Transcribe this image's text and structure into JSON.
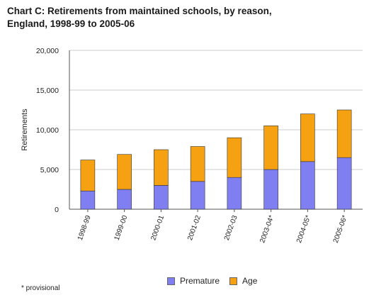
{
  "chart_data": {
    "type": "bar",
    "stacked": true,
    "title": "Chart C: Retirements from maintained schools, by reason,",
    "subtitle": "England, 1998-99 to 2005-06",
    "xlabel": "",
    "ylabel": "Retirements",
    "categories": [
      "1998-99",
      "1999-00",
      "2000-01",
      "2001-02",
      "2002-03",
      "2003-04*",
      "2004-05*",
      "2005-06*"
    ],
    "series": [
      {
        "name": "Premature",
        "color": "#7f7ff2",
        "values": [
          2300,
          2500,
          3000,
          3500,
          4000,
          5000,
          6000,
          6500
        ]
      },
      {
        "name": "Age",
        "color": "#f5a111",
        "values": [
          3900,
          4400,
          4500,
          4400,
          5000,
          5500,
          6000,
          6000
        ]
      }
    ],
    "ylim": [
      0,
      20000
    ],
    "yticks": [
      "0",
      "5,000",
      "10,000",
      "15,000",
      "20,000"
    ],
    "ytick_values": [
      0,
      5000,
      10000,
      15000,
      20000
    ],
    "grid": true,
    "legend_position": "bottom"
  },
  "footnote": "* provisional",
  "colors": {
    "premature": "#7f7ff2",
    "age": "#f5a111",
    "axis": "#555555",
    "grid": "#cccccc"
  }
}
